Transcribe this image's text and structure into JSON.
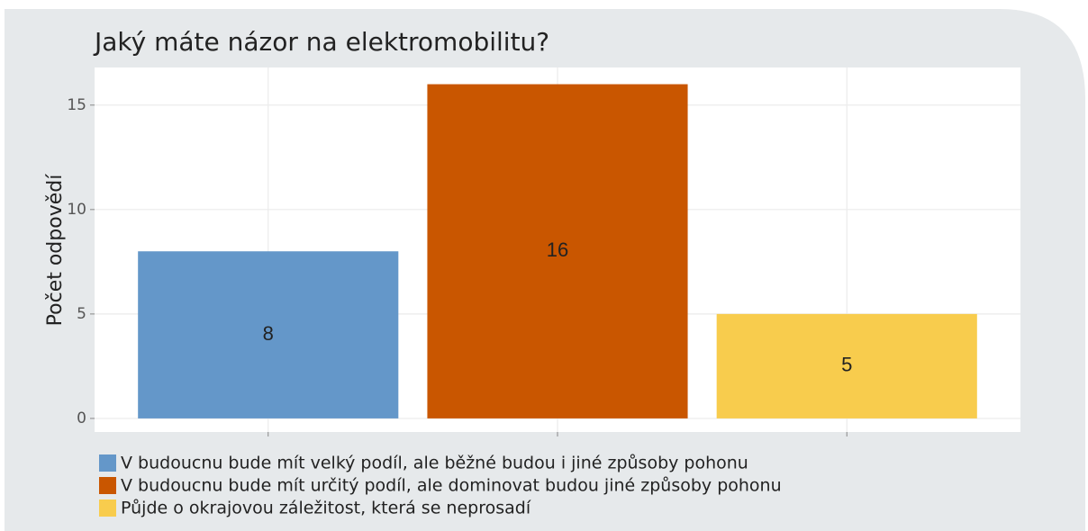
{
  "chart_data": {
    "type": "bar",
    "title": "Jaký máte názor na elektromobilitu?",
    "y_label": "Počet odpovědí",
    "categories": [
      "V budoucnu bude mít velký podíl, ale běžné budou i jiné způsoby pohonu",
      "V budoucnu bude mít určitý podíl, ale dominovat budou jiné způsoby pohonu",
      "Půjde o okrajovou záležitost, která se neprosadí"
    ],
    "values": [
      8,
      16,
      5
    ],
    "colors": [
      "#6497c9",
      "#c95600",
      "#f8cc4d"
    ],
    "ylim": [
      -0.65,
      16.8
    ],
    "yticks": [
      0,
      5,
      10,
      15
    ],
    "grid": true,
    "legend": "bottom"
  }
}
